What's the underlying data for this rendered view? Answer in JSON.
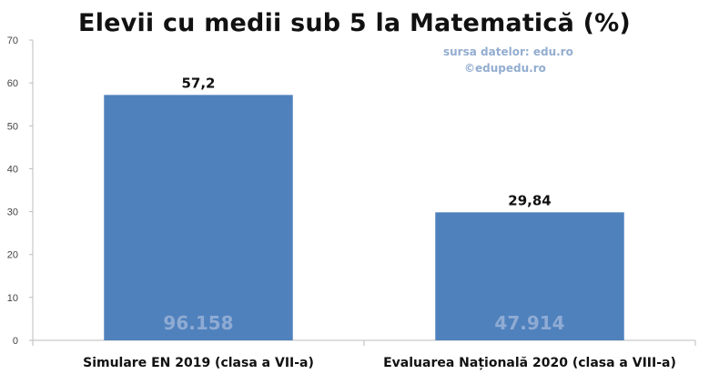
{
  "chart_data": {
    "type": "bar",
    "title": "Elevii cu medii sub 5 la Matematică (%)",
    "source": [
      "sursa datelor: edu.ro",
      "©edupedu.ro"
    ],
    "categories": [
      "Simulare EN 2019 (clasa a VII-a)",
      "Evaluarea Națională 2020 (clasa a VIII-a)"
    ],
    "values": [
      57.2,
      29.84
    ],
    "value_labels": [
      "57,2",
      "29,84"
    ],
    "inner_labels": [
      "96.158",
      "47.914"
    ],
    "ylim": [
      0,
      70
    ],
    "yticks": [
      0,
      10,
      20,
      30,
      40,
      50,
      60,
      70
    ],
    "grid": false,
    "colors": {
      "bar": "#4f81bd",
      "inner_text": "#8fabd3",
      "source_text": "#93add0"
    }
  }
}
